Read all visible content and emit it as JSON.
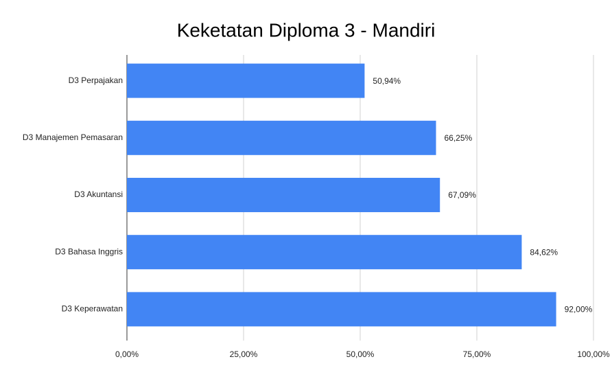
{
  "chart_data": {
    "type": "bar",
    "title": "Keketatan Diploma 3 - Mandiri",
    "categories": [
      "D3 Perpajakan",
      "D3 Manajemen Pemasaran",
      "D3 Akuntansi",
      "D3 Bahasa Inggris",
      "D3 Keperawatan"
    ],
    "values": [
      50.94,
      66.25,
      67.09,
      84.62,
      92.0
    ],
    "value_labels": [
      "50,94%",
      "66,25%",
      "67,09%",
      "84,62%",
      "92,00%"
    ],
    "color": "#4285f4",
    "xlim": [
      0,
      100
    ],
    "xticks": [
      {
        "value": 0,
        "label": "0,00%"
      },
      {
        "value": 25,
        "label": "25,00%"
      },
      {
        "value": 50,
        "label": "50,00%"
      },
      {
        "value": 75,
        "label": "75,00%"
      },
      {
        "value": 100,
        "label": "100,00%"
      }
    ],
    "grid": true
  }
}
